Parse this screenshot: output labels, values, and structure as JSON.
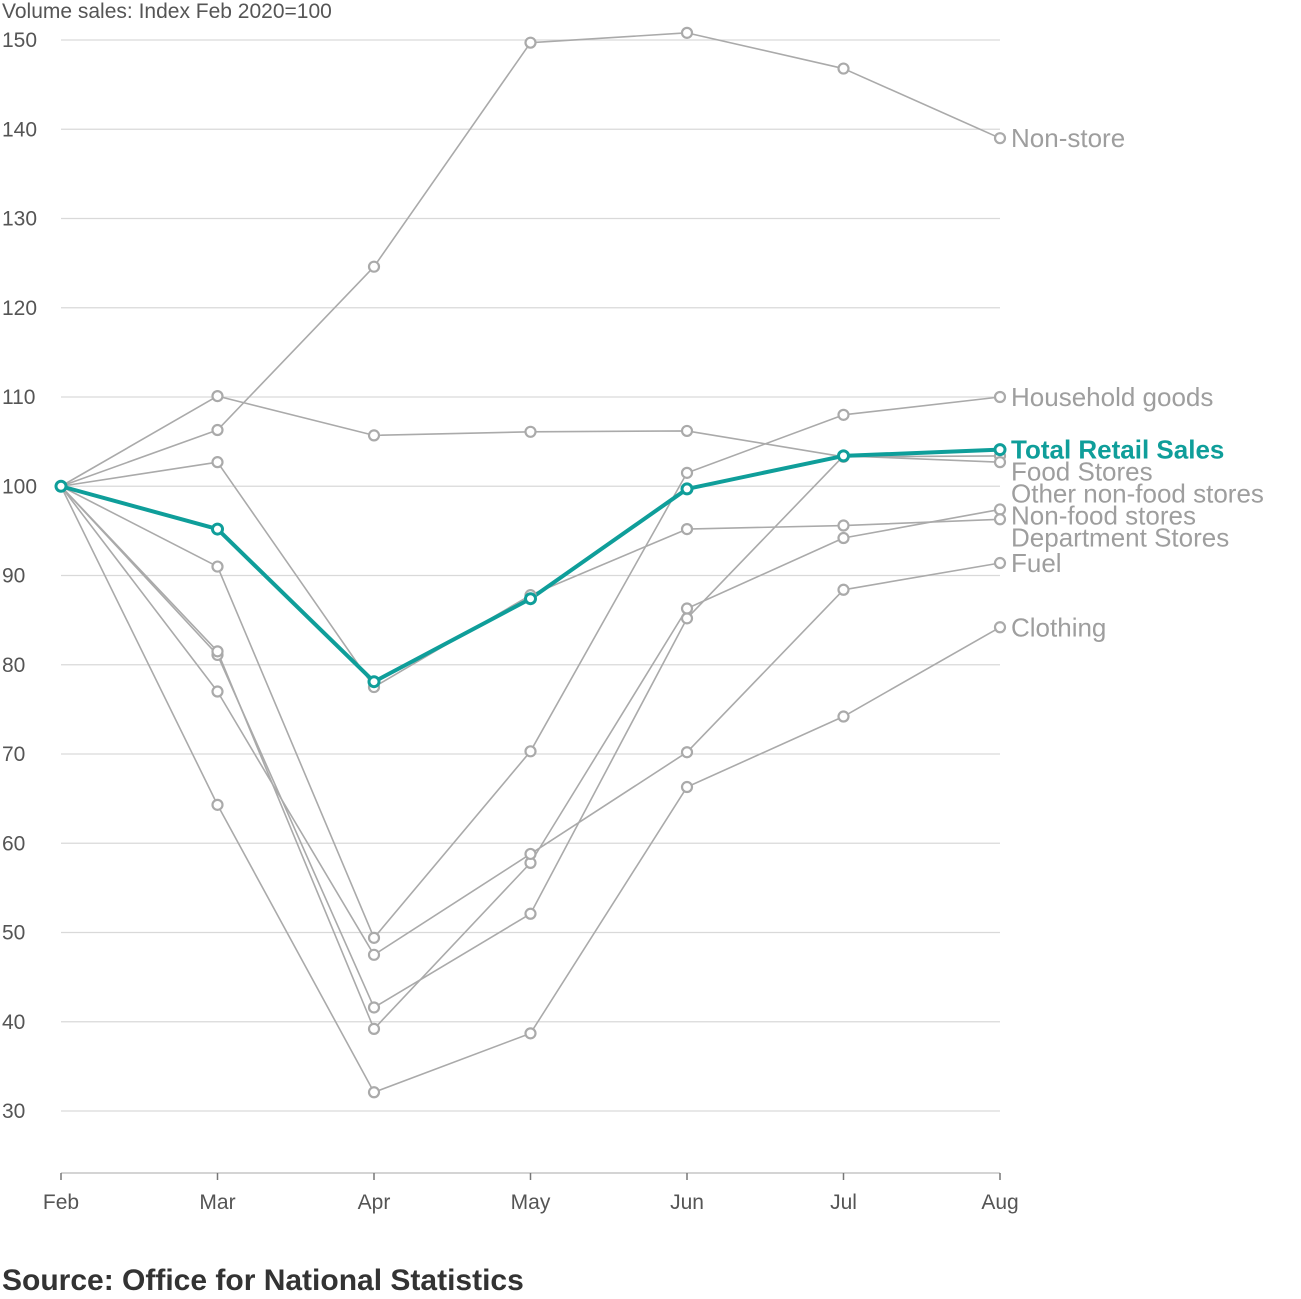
{
  "chart_data": {
    "type": "line",
    "ylabel": "Volume sales: Index Feb 2020=100",
    "categories": [
      "Feb",
      "Mar",
      "Apr",
      "May",
      "Jun",
      "Jul",
      "Aug"
    ],
    "yticks": [
      30,
      40,
      50,
      60,
      70,
      80,
      90,
      100,
      110,
      120,
      130,
      140,
      150
    ],
    "ylim": [
      30,
      150
    ],
    "grid": true,
    "series": [
      {
        "name": "Non-store",
        "values": [
          100,
          106.3,
          124.6,
          149.7,
          150.8,
          146.8,
          139.0
        ],
        "color": "#aaaaaa",
        "highlight": false
      },
      {
        "name": "Household goods",
        "values": [
          100,
          91.0,
          49.4,
          70.3,
          101.5,
          108.0,
          110.0
        ],
        "color": "#aaaaaa",
        "highlight": false
      },
      {
        "name": "Food Stores",
        "values": [
          100,
          110.1,
          105.7,
          106.1,
          106.2,
          103.3,
          103.4
        ],
        "color": "#aaaaaa",
        "highlight": false
      },
      {
        "name": "Other non-food stores",
        "values": [
          100,
          81.1,
          41.6,
          52.1,
          85.2,
          103.4,
          102.7
        ],
        "color": "#aaaaaa",
        "highlight": false
      },
      {
        "name": "Non-food stores",
        "values": [
          100,
          81.5,
          39.2,
          57.8,
          86.3,
          94.2,
          97.4
        ],
        "color": "#aaaaaa",
        "highlight": false
      },
      {
        "name": "Department Stores",
        "values": [
          100,
          102.7,
          77.5,
          87.8,
          95.2,
          95.6,
          96.3
        ],
        "color": "#aaaaaa",
        "highlight": false
      },
      {
        "name": "Fuel",
        "values": [
          100,
          77.0,
          47.5,
          58.8,
          70.2,
          88.4,
          91.4
        ],
        "color": "#aaaaaa",
        "highlight": false
      },
      {
        "name": "Clothing",
        "values": [
          100,
          64.3,
          32.1,
          38.7,
          66.3,
          74.2,
          84.2
        ],
        "color": "#aaaaaa",
        "highlight": false
      },
      {
        "name": "Total Retail Sales",
        "values": [
          100,
          95.2,
          78.1,
          87.4,
          99.7,
          103.4,
          104.1
        ],
        "color": "#0f9e9a",
        "highlight": true
      }
    ],
    "label_order": [
      "Non-store",
      "Household goods",
      "Total Retail Sales",
      "Food Stores",
      "Other non-food stores",
      "Non-food stores",
      "Department Stores",
      "Fuel",
      "Clothing"
    ]
  },
  "source": "Source: Office for National Statistics"
}
